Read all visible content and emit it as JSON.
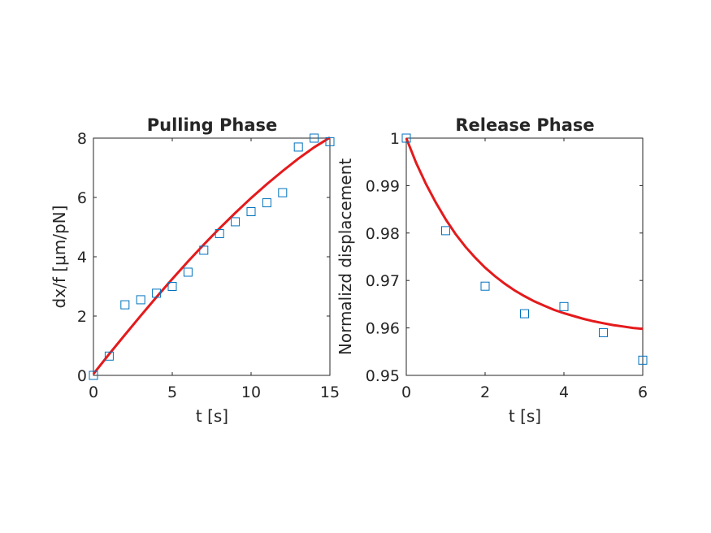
{
  "chart_data": [
    {
      "type": "scatter",
      "title": "Pulling Phase",
      "xlabel": "t [s]",
      "ylabel": "dx/f [μm/pN]",
      "xlim": [
        0,
        15
      ],
      "ylim": [
        0,
        8
      ],
      "xticks": [
        0,
        5,
        10,
        15
      ],
      "yticks": [
        0,
        2,
        4,
        6,
        8
      ],
      "xtick_labels": [
        "0",
        "5",
        "10",
        "15"
      ],
      "ytick_labels": [
        "0",
        "2",
        "4",
        "6",
        "8"
      ],
      "grid": false,
      "series": [
        {
          "kind": "markers",
          "marker": "square",
          "color": "#0072BD",
          "x": [
            0,
            1,
            2,
            3,
            4,
            5,
            6,
            7,
            8,
            9,
            10,
            11,
            12,
            13,
            14,
            15
          ],
          "y": [
            0.0,
            0.65,
            2.38,
            2.55,
            2.77,
            3.0,
            3.48,
            4.22,
            4.78,
            5.18,
            5.52,
            5.82,
            6.16,
            7.7,
            8.0,
            7.88
          ]
        },
        {
          "kind": "line",
          "color": "#E41A1C",
          "x": [
            0,
            1,
            2,
            3,
            4,
            5,
            6,
            7,
            8,
            9,
            10,
            11,
            12,
            13,
            14,
            15
          ],
          "y": [
            0.05,
            0.72,
            1.37,
            2.01,
            2.64,
            3.25,
            3.84,
            4.41,
            4.96,
            5.48,
            5.98,
            6.45,
            6.89,
            7.31,
            7.69,
            8.02
          ]
        }
      ]
    },
    {
      "type": "scatter",
      "title": "Release Phase",
      "xlabel": "t [s]",
      "ylabel": "Normalizd displacement",
      "xlim": [
        0,
        6
      ],
      "ylim": [
        0.95,
        1.0
      ],
      "xticks": [
        0,
        2,
        4,
        6
      ],
      "yticks": [
        0.95,
        0.96,
        0.97,
        0.98,
        0.99,
        1.0
      ],
      "xtick_labels": [
        "0",
        "2",
        "4",
        "6"
      ],
      "ytick_labels": [
        "0.95",
        "0.96",
        "0.97",
        "0.98",
        "0.99",
        "1"
      ],
      "grid": false,
      "series": [
        {
          "kind": "markers",
          "marker": "square",
          "color": "#0072BD",
          "x": [
            0,
            1,
            2,
            3,
            4,
            5,
            6
          ],
          "y": [
            1.0,
            0.9805,
            0.9688,
            0.963,
            0.9645,
            0.959,
            0.9532
          ]
        },
        {
          "kind": "line",
          "color": "#E41A1C",
          "x": [
            0,
            0.25,
            0.5,
            0.75,
            1,
            1.25,
            1.5,
            1.75,
            2,
            2.25,
            2.5,
            2.75,
            3,
            3.25,
            3.5,
            3.75,
            4,
            4.25,
            4.5,
            4.75,
            5,
            5.25,
            5.5,
            5.75,
            6
          ],
          "y": [
            1.0,
            0.9948,
            0.9903,
            0.9864,
            0.9829,
            0.9798,
            0.9771,
            0.9748,
            0.9727,
            0.9709,
            0.9693,
            0.9679,
            0.9667,
            0.9656,
            0.9647,
            0.9638,
            0.9631,
            0.9625,
            0.9619,
            0.9614,
            0.961,
            0.9606,
            0.9603,
            0.96,
            0.9598
          ]
        }
      ]
    }
  ]
}
